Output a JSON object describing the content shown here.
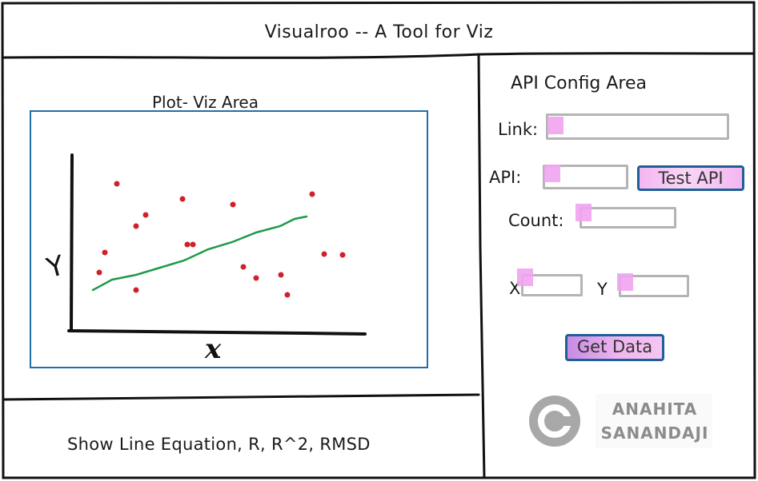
{
  "header": {
    "title": "Visualroo -- A Tool for Viz"
  },
  "plot_area": {
    "label": "Plot- Viz Area",
    "y_axis_label": "Y",
    "x_axis_label": "x",
    "point_color": "#d0202a",
    "line_color": "#1f9a4a"
  },
  "footer": {
    "text": "Show Line Equation, R, R^2, RMSD"
  },
  "api_config": {
    "title": "API Config Area",
    "link_label": "Link:",
    "link_value": "",
    "api_label": "API:",
    "api_value": "",
    "test_api_label": "Test API",
    "count_label": "Count:",
    "count_value": "",
    "x_label": "X",
    "x_value": "",
    "y_label": "Y",
    "y_value": "",
    "get_data_label": "Get Data"
  },
  "logo": {
    "icon": "copyright-icon",
    "line1": "ANAHITA",
    "line2": "SANANDAJI"
  },
  "colors": {
    "accent_blue": "#1f6fa8",
    "highlight_pink": "#f1a3ef",
    "input_gray": "#b4b4b4"
  }
}
